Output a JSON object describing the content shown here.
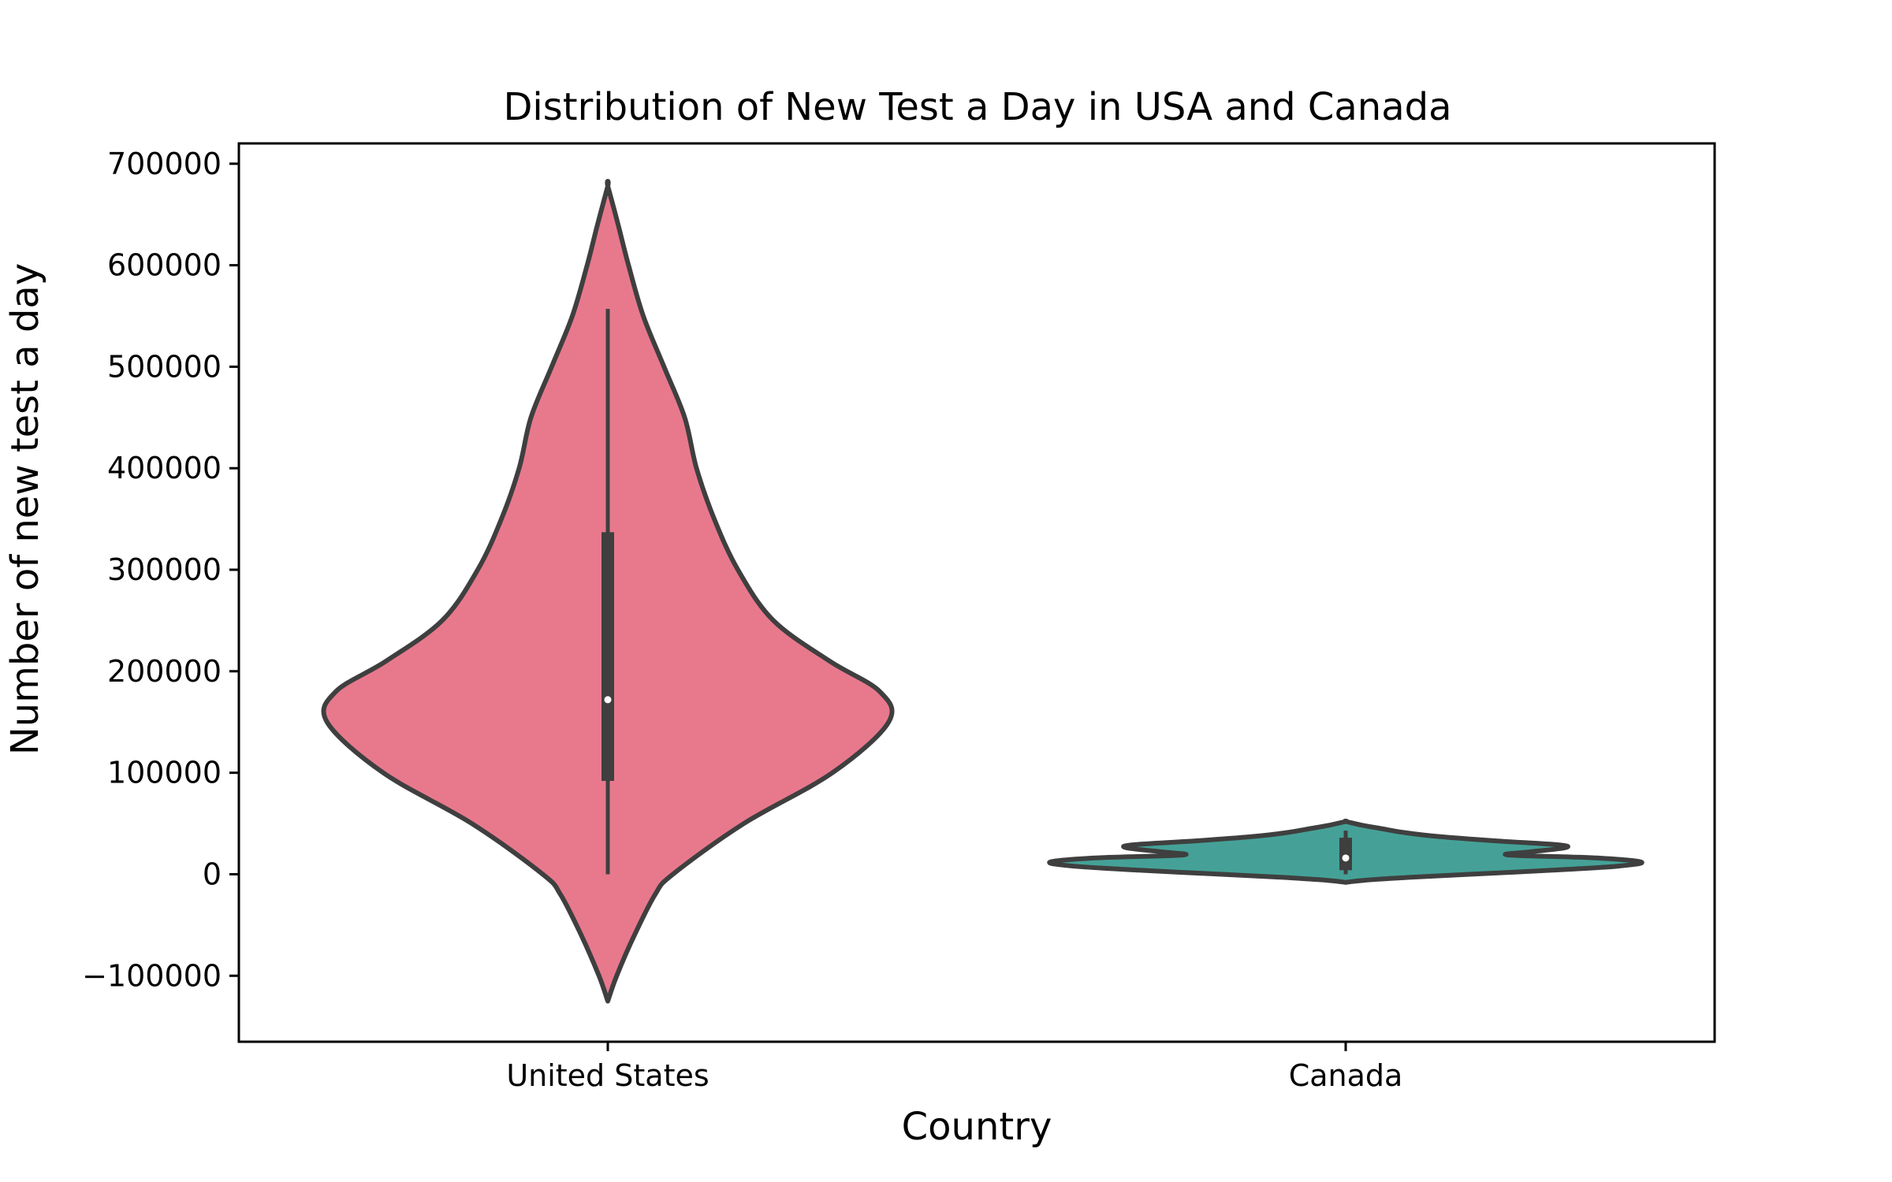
{
  "chart_data": {
    "type": "violin",
    "title": "Distribution of New Test a Day in USA and Canada",
    "xlabel": "Country",
    "ylabel": "Number of new test a day",
    "categories": [
      "United States",
      "Canada"
    ],
    "ylim": [
      -165000,
      720000
    ],
    "yticks": [
      -100000,
      0,
      100000,
      200000,
      300000,
      400000,
      500000,
      600000,
      700000
    ],
    "ytick_labels": [
      "−100000",
      "0",
      "100000",
      "200000",
      "300000",
      "400000",
      "500000",
      "600000",
      "700000"
    ],
    "grid": false,
    "legend": "none",
    "colors": {
      "United States": "#e8798d",
      "Canada": "#45a197",
      "outline": "#3f3f3f"
    },
    "series": [
      {
        "category": "United States",
        "min": 0,
        "q1": 92000,
        "median": 172000,
        "q3": 337000,
        "whisker_high": 557000,
        "kde_top": 678000,
        "kde_bottom": -125000,
        "density": [
          [
            -125000,
            0.0
          ],
          [
            -100000,
            0.03
          ],
          [
            -60000,
            0.09
          ],
          [
            -20000,
            0.16
          ],
          [
            0,
            0.22
          ],
          [
            50000,
            0.46
          ],
          [
            100000,
            0.76
          ],
          [
            150000,
            0.95
          ],
          [
            180000,
            0.92
          ],
          [
            210000,
            0.75
          ],
          [
            250000,
            0.56
          ],
          [
            300000,
            0.44
          ],
          [
            350000,
            0.36
          ],
          [
            400000,
            0.3
          ],
          [
            450000,
            0.26
          ],
          [
            500000,
            0.19
          ],
          [
            550000,
            0.12
          ],
          [
            600000,
            0.07
          ],
          [
            640000,
            0.035
          ],
          [
            678000,
            0.0
          ]
        ]
      },
      {
        "category": "Canada",
        "min": 0,
        "q1": 4000,
        "median": 16000,
        "q3": 36000,
        "whisker_high": 43000,
        "kde_top": 52000,
        "kde_bottom": -8000,
        "density": [
          [
            -8000,
            0.0
          ],
          [
            -6000,
            0.06
          ],
          [
            -3000,
            0.22
          ],
          [
            0,
            0.42
          ],
          [
            4000,
            0.7
          ],
          [
            8000,
            0.92
          ],
          [
            12000,
            1.0
          ],
          [
            16000,
            0.85
          ],
          [
            19000,
            0.55
          ],
          [
            22000,
            0.62
          ],
          [
            26000,
            0.74
          ],
          [
            29000,
            0.72
          ],
          [
            33000,
            0.5
          ],
          [
            37000,
            0.32
          ],
          [
            41000,
            0.2
          ],
          [
            45000,
            0.12
          ],
          [
            48000,
            0.06
          ],
          [
            52000,
            0.0
          ]
        ]
      }
    ]
  }
}
